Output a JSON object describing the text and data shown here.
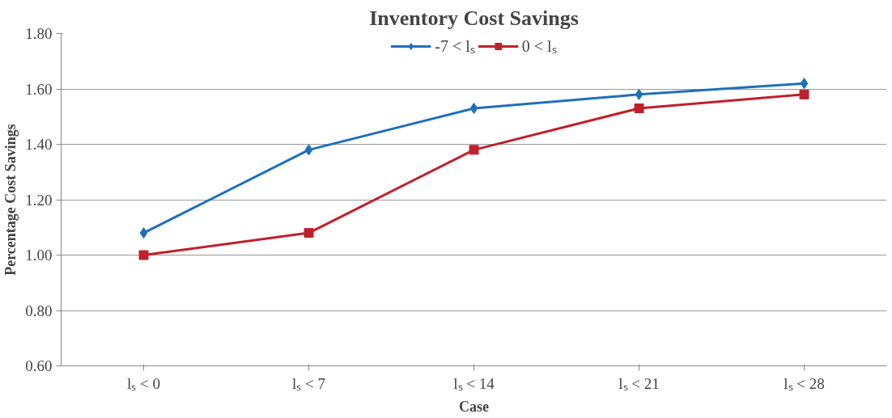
{
  "chart_data": {
    "type": "line",
    "title": "Inventory Cost Savings",
    "xlabel": "Case",
    "ylabel": "Percentage Cost Savings",
    "categories": [
      "lₛ < 0",
      "lₛ < 7",
      "lₛ < 14",
      "lₛ < 21",
      "lₛ < 28"
    ],
    "series": [
      {
        "name": "-7 < lₛ",
        "color": "#1f6fba",
        "marker": "diamond",
        "values": [
          1.08,
          1.38,
          1.53,
          1.58,
          1.62
        ]
      },
      {
        "name": "0 < lₛ",
        "color": "#c0202a",
        "marker": "square",
        "values": [
          1.0,
          1.08,
          1.38,
          1.53,
          1.58
        ]
      }
    ],
    "ylim": [
      0.6,
      1.8
    ],
    "yticks": [
      {
        "value": 0.6,
        "label": "0.60"
      },
      {
        "value": 0.8,
        "label": "0.80"
      },
      {
        "value": 1.0,
        "label": "1.00"
      },
      {
        "value": 1.2,
        "label": "1.20"
      },
      {
        "value": 1.4,
        "label": "1.40"
      },
      {
        "value": 1.6,
        "label": "1.60"
      },
      {
        "value": 1.8,
        "label": "1.80"
      }
    ],
    "grid": "y",
    "legend": "top",
    "line_style": "solid"
  }
}
